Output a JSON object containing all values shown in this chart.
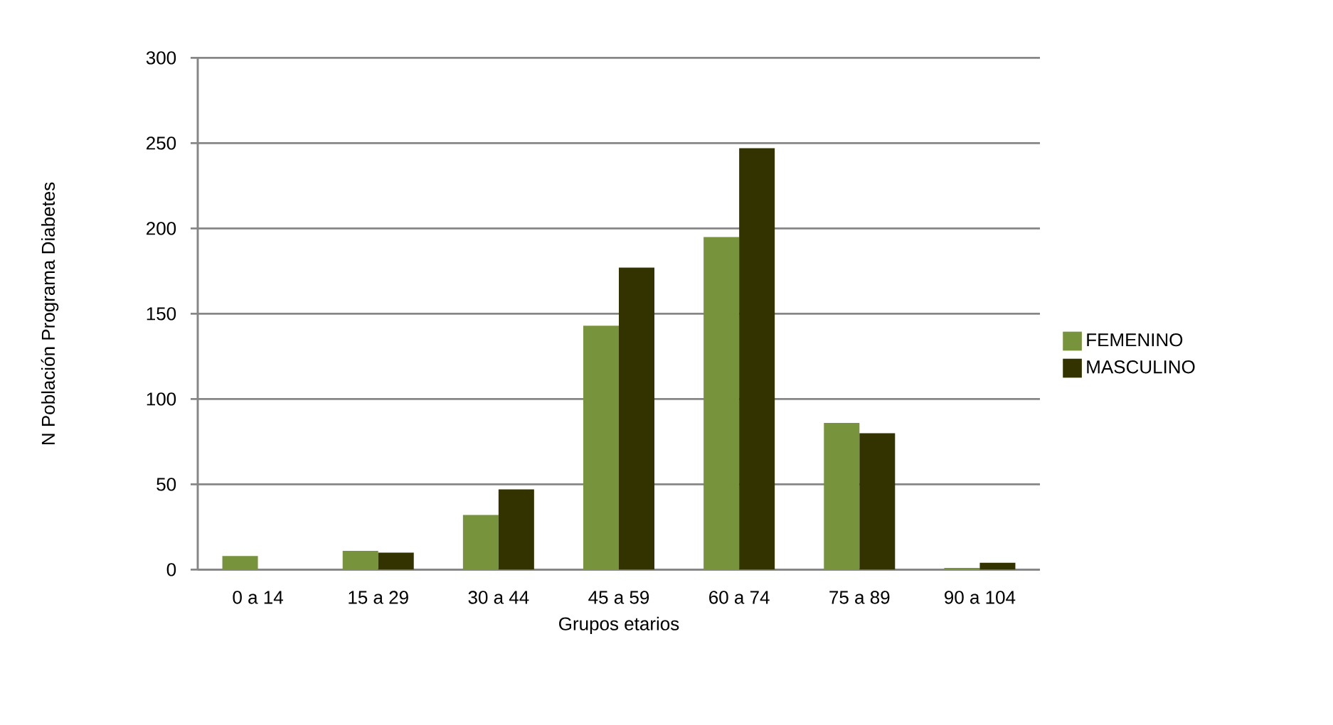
{
  "chart_data": {
    "type": "bar",
    "xlabel": "Grupos etarios",
    "ylabel": "N Población Programa Diabetes",
    "categories": [
      "0 a 14",
      "15 a 29",
      "30 a 44",
      "45 a 59",
      "60 a 74",
      "75 a 89",
      "90 a 104"
    ],
    "series": [
      {
        "name": "FEMENINO",
        "color": "#77933c",
        "values": [
          8,
          11,
          32,
          143,
          195,
          86,
          1
        ]
      },
      {
        "name": "MASCULINO",
        "color": "#333300",
        "values": [
          0,
          10,
          47,
          177,
          247,
          80,
          4
        ]
      }
    ],
    "ylim": [
      0,
      300
    ],
    "yticks": [
      0,
      50,
      100,
      150,
      200,
      250,
      300
    ],
    "grid": "y",
    "legend": "right"
  }
}
